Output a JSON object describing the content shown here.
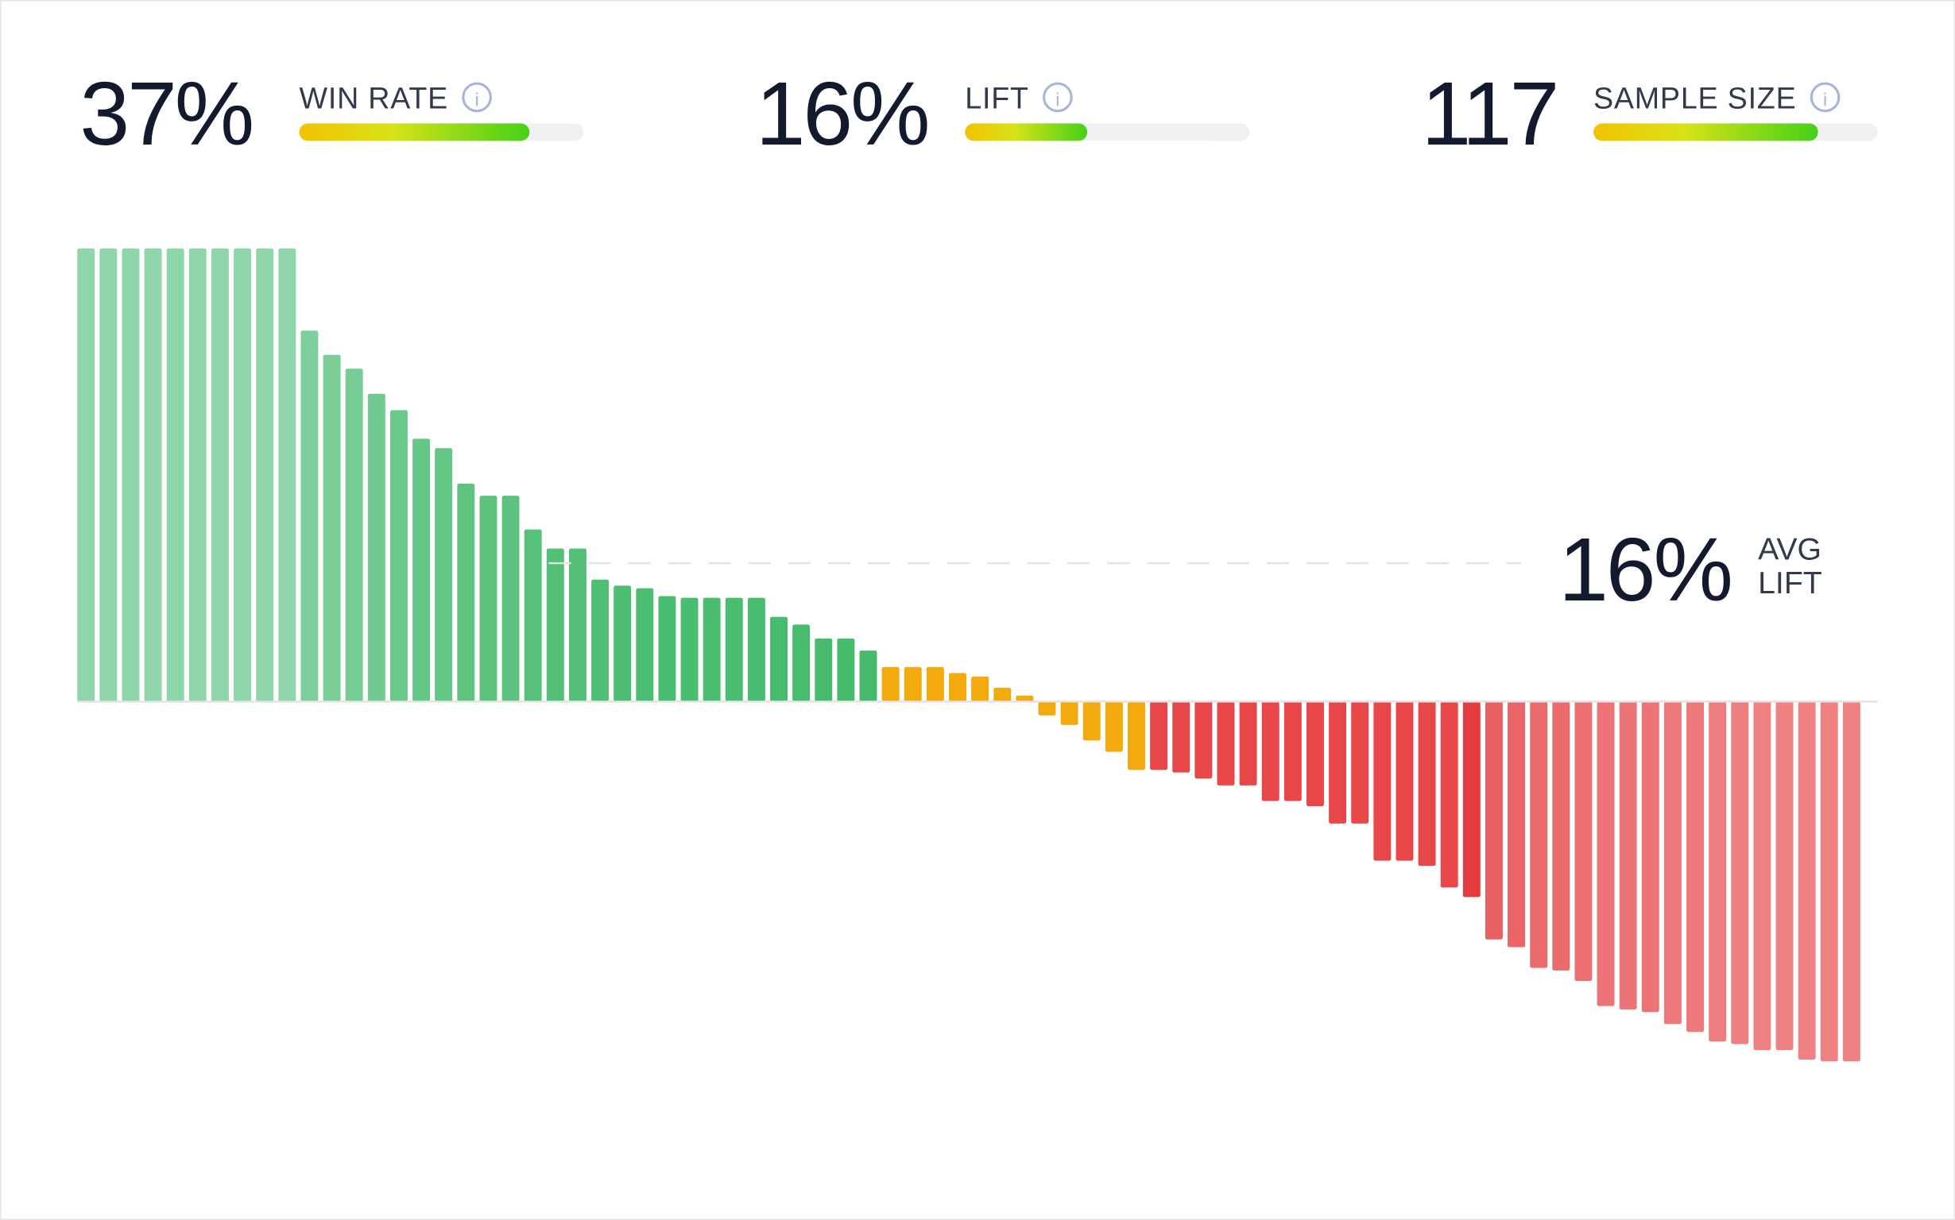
{
  "kpis": [
    {
      "value": "37%",
      "label": "WIN RATE",
      "fill": 0.81
    },
    {
      "value": "16%",
      "label": "LIFT",
      "fill": 0.43
    },
    {
      "value": "117",
      "label": "SAMPLE SIZE",
      "fill": 0.79
    }
  ],
  "chart_data": {
    "type": "bar",
    "average": {
      "value": 16,
      "label": "16%",
      "text": [
        "AVG",
        "LIFT"
      ]
    },
    "values": [
      52.4,
      52.4,
      52.4,
      52.4,
      52.4,
      52.4,
      52.4,
      52.4,
      52.4,
      52.4,
      42.9,
      40.1,
      38.5,
      35.6,
      33.7,
      30.4,
      29.3,
      25.2,
      23.8,
      23.8,
      19.9,
      17.7,
      17.7,
      14.1,
      13.4,
      13.1,
      12.2,
      12.0,
      12.0,
      12.0,
      12.0,
      9.8,
      8.9,
      7.3,
      7.3,
      5.9,
      4.0,
      4.0,
      4.0,
      3.3,
      2.9,
      1.6,
      0.7,
      -1.6,
      -2.7,
      -4.5,
      -5.8,
      -7.9,
      -7.9,
      -8.2,
      -8.9,
      -9.7,
      -9.7,
      -11.5,
      -11.5,
      -12.1,
      -14.1,
      -14.1,
      -18.4,
      -18.4,
      -19.0,
      -21.5,
      -22.6,
      -27.5,
      -28.4,
      -30.8,
      -31.1,
      -32.3,
      -35.2,
      -35.6,
      -35.9,
      -37.3,
      -38.2,
      -39.3,
      -39.6,
      -40.3,
      -40.3,
      -41.4,
      -41.6,
      -41.6
    ],
    "colors": [
      "#8fd6aa",
      "#8fd6aa",
      "#8fd6aa",
      "#8fd6aa",
      "#8fd6aa",
      "#8fd6aa",
      "#8fd6aa",
      "#8fd6aa",
      "#8fd6aa",
      "#8fd6aa",
      "#7dd09c",
      "#7acf99",
      "#76cd95",
      "#70cb90",
      "#6bc98c",
      "#66c787",
      "#63c684",
      "#5ec480",
      "#5bc37d",
      "#5bc37d",
      "#56c179",
      "#53c076",
      "#53c076",
      "#4fbf73",
      "#4dbe71",
      "#4dbe71",
      "#4bbd70",
      "#4bbd70",
      "#4bbd70",
      "#4bbd70",
      "#4bbd70",
      "#48bc6e",
      "#48bc6e",
      "#46bb6c",
      "#46bb6c",
      "#45bb6b",
      "#f2aa0e",
      "#f2aa0e",
      "#f2aa0e",
      "#f2aa0e",
      "#f2aa0e",
      "#f2aa0e",
      "#f2aa0e",
      "#f2aa0e",
      "#f2aa0e",
      "#f2aa0e",
      "#f2aa0e",
      "#f2aa0e",
      "#e8474a",
      "#e8474a",
      "#e8474a",
      "#e8474a",
      "#e8474a",
      "#e8474a",
      "#e8474a",
      "#e8474a",
      "#e8474a",
      "#e8474a",
      "#e8474a",
      "#e8474a",
      "#e8474a",
      "#e8474a",
      "#e53c3f",
      "#e96063",
      "#ea6568",
      "#eb6a6c",
      "#eb6a6c",
      "#ec6f71",
      "#ed7476",
      "#ed7476",
      "#ed7476",
      "#ee797b",
      "#ee797b",
      "#ee7d7f",
      "#ee7d7f",
      "#ef8183",
      "#ef8183",
      "#ef8183",
      "#ef8183",
      "#ef8183"
    ]
  }
}
